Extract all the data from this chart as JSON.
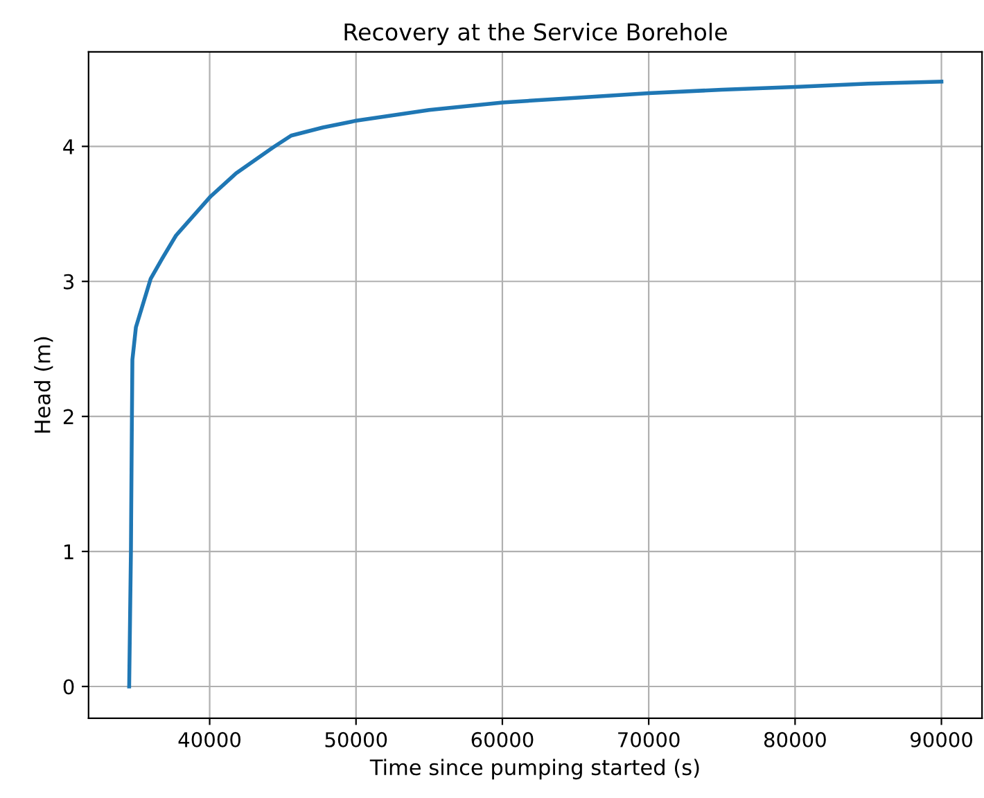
{
  "chart_data": {
    "type": "line",
    "title": "Recovery at the Service Borehole",
    "xlabel": "Time since pumping started (s)",
    "ylabel": "Head (m)",
    "x": [
      34500,
      34560,
      34620,
      34680,
      34720,
      34960,
      35970,
      36760,
      37700,
      40070,
      41800,
      44300,
      45570,
      47740,
      50000,
      55000,
      60000,
      65000,
      70000,
      75000,
      80000,
      85000,
      90000
    ],
    "series": [
      {
        "color": "#1f77b4",
        "values": [
          0,
          0.5,
          1.0,
          1.9,
          2.42,
          2.66,
          3.02,
          3.17,
          3.34,
          3.63,
          3.8,
          3.99,
          4.08,
          4.14,
          4.19,
          4.27,
          4.325,
          4.36,
          4.394,
          4.42,
          4.44,
          4.465,
          4.48
        ]
      }
    ],
    "xlim": [
      31725,
      92775
    ],
    "ylim": [
      -0.235,
      4.7
    ],
    "xticks": [
      40000,
      50000,
      60000,
      70000,
      80000,
      90000
    ],
    "yticks": [
      0,
      1,
      2,
      3,
      4
    ],
    "grid": true
  }
}
